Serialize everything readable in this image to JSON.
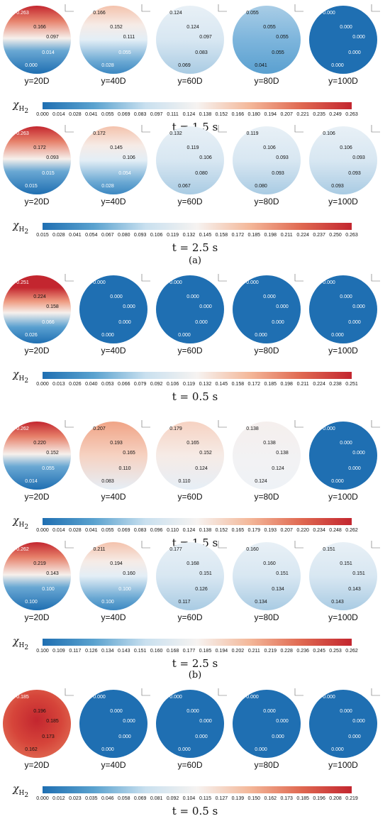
{
  "rows": [
    {
      "row_top": 4,
      "colorbar": {
        "gradient": [
          "#1f6fb2",
          "#5aa2cf",
          "#c9e0ef",
          "#f6f3f1",
          "#f4b99b",
          "#e06a52",
          "#c3262f"
        ],
        "ticks": [
          "0.000",
          "0.014",
          "0.028",
          "0.041",
          "0.055",
          "0.069",
          "0.083",
          "0.097",
          "0.111",
          "0.124",
          "0.138",
          "0.152",
          "0.166",
          "0.180",
          "0.194",
          "0.207",
          "0.221",
          "0.235",
          "0.249",
          "0.263"
        ]
      },
      "time_label": "t = 1.5 s",
      "panels": [
        {
          "ylabel": "y=20D",
          "vals": [
            "0.263",
            "0.166",
            "0.097",
            "0.014",
            "0.000"
          ],
          "style": "strat"
        },
        {
          "ylabel": "y=40D",
          "vals": [
            "0.166",
            "0.152",
            "0.111",
            "0.055",
            "0.028"
          ],
          "style": "strat_light"
        },
        {
          "ylabel": "y=60D",
          "vals": [
            "0.124",
            "0.124",
            "0.097",
            "0.083",
            "0.069"
          ],
          "style": "pale"
        },
        {
          "ylabel": "y=80D",
          "vals": [
            "0.055",
            "0.055",
            "0.055",
            "0.055",
            "0.041"
          ],
          "style": "mid"
        },
        {
          "ylabel": "y=100D",
          "vals": [
            "0.000",
            "0.000",
            "0.000",
            "0.000",
            "0.000"
          ],
          "style": "blue"
        }
      ]
    },
    {
      "row_top": 174,
      "colorbar": {
        "gradient": [
          "#1f6fb2",
          "#5aa2cf",
          "#c9e0ef",
          "#f6f3f1",
          "#f4b99b",
          "#e06a52",
          "#c3262f"
        ],
        "ticks": [
          "0.015",
          "0.028",
          "0.041",
          "0.054",
          "0.067",
          "0.080",
          "0.093",
          "0.106",
          "0.119",
          "0.132",
          "0.145",
          "0.158",
          "0.172",
          "0.185",
          "0.198",
          "0.211",
          "0.224",
          "0.237",
          "0.250",
          "0.263"
        ]
      },
      "time_label": "t = 2.5 s",
      "panels": [
        {
          "ylabel": "y=20D",
          "vals": [
            "0.263",
            "0.172",
            "0.093",
            "0.015",
            "0.015"
          ],
          "style": "strat"
        },
        {
          "ylabel": "y=40D",
          "vals": [
            "0.172",
            "0.145",
            "0.106",
            "0.054",
            "0.028"
          ],
          "style": "strat_light"
        },
        {
          "ylabel": "y=60D",
          "vals": [
            "0.132",
            "0.119",
            "0.106",
            "0.080",
            "0.067"
          ],
          "style": "pale"
        },
        {
          "ylabel": "y=80D",
          "vals": [
            "0.119",
            "0.106",
            "0.093",
            "0.093",
            "0.080"
          ],
          "style": "pale"
        },
        {
          "ylabel": "y=100D",
          "vals": [
            "0.106",
            "0.106",
            "0.093",
            "0.093",
            "0.093"
          ],
          "style": "pale"
        }
      ]
    },
    {
      "row_top": 384,
      "colorbar": {
        "gradient": [
          "#1f6fb2",
          "#5aa2cf",
          "#c9e0ef",
          "#f6f3f1",
          "#f4b99b",
          "#e06a52",
          "#c3262f"
        ],
        "ticks": [
          "0.000",
          "0.013",
          "0.026",
          "0.040",
          "0.053",
          "0.066",
          "0.079",
          "0.092",
          "0.106",
          "0.119",
          "0.132",
          "0.145",
          "0.158",
          "0.172",
          "0.185",
          "0.198",
          "0.211",
          "0.224",
          "0.238",
          "0.251"
        ]
      },
      "time_label": "t = 0.5 s",
      "panels": [
        {
          "ylabel": "y=20D",
          "vals": [
            "0.251",
            "0.224",
            "0.158",
            "0.066",
            "0.026"
          ],
          "style": "strat_hot"
        },
        {
          "ylabel": "y=40D",
          "vals": [
            "0.000",
            "0.000",
            "0.000",
            "0.000",
            "0.000"
          ],
          "style": "blue"
        },
        {
          "ylabel": "y=60D",
          "vals": [
            "0.000",
            "0.000",
            "0.000",
            "0.000",
            "0.000"
          ],
          "style": "blue"
        },
        {
          "ylabel": "y=80D",
          "vals": [
            "0.000",
            "0.000",
            "0.000",
            "0.000",
            "0.000"
          ],
          "style": "blue"
        },
        {
          "ylabel": "y=100D",
          "vals": [
            "0.000",
            "0.000",
            "0.000",
            "0.000",
            "0.000"
          ],
          "style": "blue"
        }
      ]
    },
    {
      "row_top": 590,
      "colorbar": {
        "gradient": [
          "#1f6fb2",
          "#5aa2cf",
          "#c9e0ef",
          "#f6f3f1",
          "#f4b99b",
          "#e06a52",
          "#c3262f"
        ],
        "ticks": [
          "0.000",
          "0.014",
          "0.028",
          "0.041",
          "0.055",
          "0.069",
          "0.083",
          "0.096",
          "0.110",
          "0.124",
          "0.138",
          "0.152",
          "0.165",
          "0.179",
          "0.193",
          "0.207",
          "0.220",
          "0.234",
          "0.248",
          "0.262"
        ]
      },
      "time_label": "t = 1.5 s",
      "panels": [
        {
          "ylabel": "y=20D",
          "vals": [
            "0.262",
            "0.220",
            "0.152",
            "0.055",
            "0.014"
          ],
          "style": "strat"
        },
        {
          "ylabel": "y=40D",
          "vals": [
            "0.207",
            "0.193",
            "0.165",
            "0.110",
            "0.083"
          ],
          "style": "warm"
        },
        {
          "ylabel": "y=60D",
          "vals": [
            "0.179",
            "0.165",
            "0.152",
            "0.124",
            "0.110"
          ],
          "style": "warm_light"
        },
        {
          "ylabel": "y=80D",
          "vals": [
            "0.138",
            "0.138",
            "0.138",
            "0.124",
            "0.124"
          ],
          "style": "white"
        },
        {
          "ylabel": "y=100D",
          "vals": [
            "0.000",
            "0.000",
            "0.000",
            "0.000",
            "0.000"
          ],
          "style": "blue"
        }
      ]
    },
    {
      "row_top": 760,
      "colorbar": {
        "gradient": [
          "#1f6fb2",
          "#5aa2cf",
          "#c9e0ef",
          "#f6f3f1",
          "#f4b99b",
          "#e06a52",
          "#c3262f"
        ],
        "ticks": [
          "0.100",
          "0.109",
          "0.117",
          "0.126",
          "0.134",
          "0.143",
          "0.151",
          "0.160",
          "0.168",
          "0.177",
          "0.185",
          "0.194",
          "0.202",
          "0.211",
          "0.219",
          "0.228",
          "0.236",
          "0.245",
          "0.253",
          "0.262"
        ]
      },
      "time_label": "t = 2.5 s",
      "panels": [
        {
          "ylabel": "y=20D",
          "vals": [
            "0.262",
            "0.219",
            "0.143",
            "0.100",
            "0.100"
          ],
          "style": "strat"
        },
        {
          "ylabel": "y=40D",
          "vals": [
            "0.211",
            "0.194",
            "0.160",
            "0.100",
            "0.100"
          ],
          "style": "strat_light"
        },
        {
          "ylabel": "y=60D",
          "vals": [
            "0.177",
            "0.168",
            "0.151",
            "0.126",
            "0.117"
          ],
          "style": "pale"
        },
        {
          "ylabel": "y=80D",
          "vals": [
            "0.160",
            "0.160",
            "0.151",
            "0.134",
            "0.134"
          ],
          "style": "pale"
        },
        {
          "ylabel": "y=100D",
          "vals": [
            "0.151",
            "0.151",
            "0.151",
            "0.143",
            "0.143"
          ],
          "style": "pale"
        }
      ]
    },
    {
      "row_top": 968,
      "colorbar": {
        "gradient": [
          "#1f6fb2",
          "#5aa2cf",
          "#c9e0ef",
          "#f6f3f1",
          "#f4b99b",
          "#e06a52",
          "#c3262f"
        ],
        "ticks": [
          "0.000",
          "0.012",
          "0.023",
          "0.035",
          "0.046",
          "0.058",
          "0.069",
          "0.081",
          "0.092",
          "0.104",
          "0.115",
          "0.127",
          "0.139",
          "0.150",
          "0.162",
          "0.173",
          "0.185",
          "0.196",
          "0.208",
          "0.219"
        ]
      },
      "time_label": "t = 0.5 s",
      "panels": [
        {
          "ylabel": "y=20D",
          "vals": [
            "0.185",
            "0.196",
            "0.185",
            "0.173",
            "0.162"
          ],
          "style": "radial"
        },
        {
          "ylabel": "y=40D",
          "vals": [
            "0.000",
            "0.000",
            "0.000",
            "0.000",
            "0.000"
          ],
          "style": "blue"
        },
        {
          "ylabel": "y=60D",
          "vals": [
            "0.000",
            "0.000",
            "0.000",
            "0.000",
            "0.000"
          ],
          "style": "blue"
        },
        {
          "ylabel": "y=80D",
          "vals": [
            "0.000",
            "0.000",
            "0.000",
            "0.000",
            "0.000"
          ],
          "style": "blue"
        },
        {
          "ylabel": "y=100D",
          "vals": [
            "0.000",
            "0.000",
            "0.000",
            "0.000",
            "0.000"
          ],
          "style": "blue"
        }
      ]
    }
  ],
  "symbol": {
    "main": "χ",
    "sub": "H",
    "sub2": "2"
  },
  "subfig_labels": [
    {
      "text": "(a)",
      "top": 360
    },
    {
      "text": "(b)",
      "top": 944
    }
  ]
}
